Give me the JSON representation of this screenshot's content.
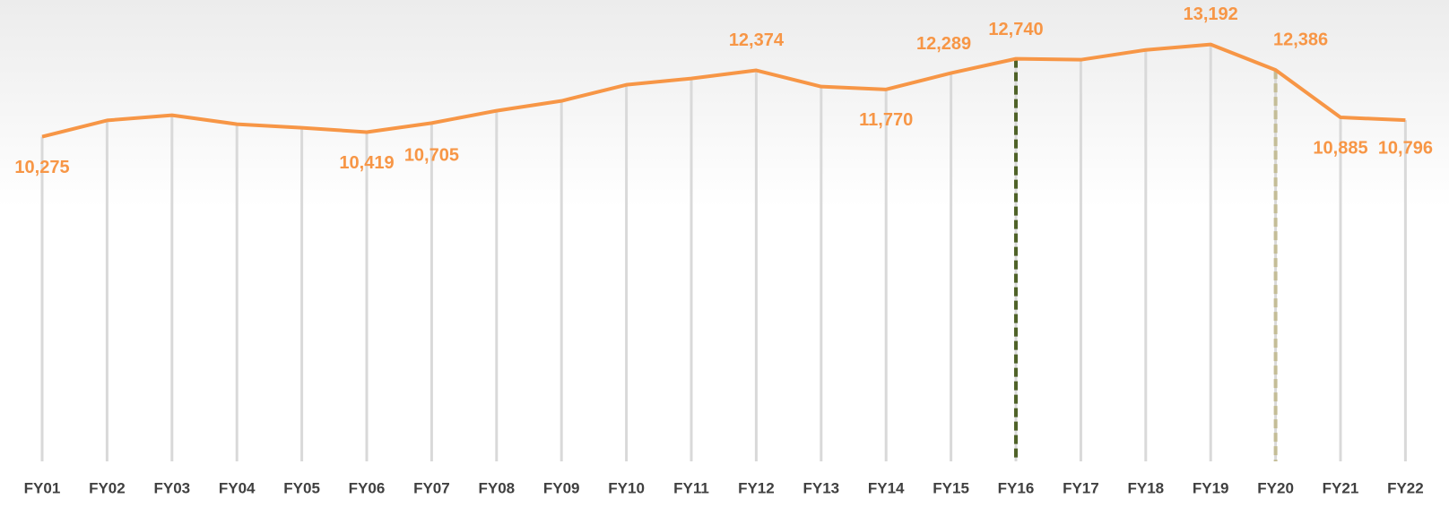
{
  "chart_data": {
    "type": "line",
    "categories": [
      "FY01",
      "FY02",
      "FY03",
      "FY04",
      "FY05",
      "FY06",
      "FY07",
      "FY08",
      "FY09",
      "FY10",
      "FY11",
      "FY12",
      "FY13",
      "FY14",
      "FY15",
      "FY16",
      "FY17",
      "FY18",
      "FY19",
      "FY20",
      "FY21",
      "FY22"
    ],
    "series": [
      {
        "name": null,
        "color": "#f79646",
        "values": [
          10275,
          10790,
          10954,
          10671,
          10558,
          10419,
          10705,
          11096,
          11407,
          11917,
          12115,
          12374,
          11860,
          11770,
          12289,
          12740,
          12710,
          13020,
          13192,
          12386,
          10885,
          10796
        ],
        "value_labels": [
          "10,275",
          null,
          null,
          null,
          null,
          "10,419",
          "10,705",
          null,
          null,
          null,
          null,
          "12,374",
          null,
          "11,770",
          "12,289",
          "12,740",
          null,
          null,
          "13,192",
          "12,386",
          "10,885",
          "10,796"
        ]
      }
    ],
    "ylim": [
      0,
      14600
    ],
    "drop_lines": true,
    "drop_line_color": "#d9d9d9",
    "highlights": [
      {
        "category": 15,
        "color": "#4f6228"
      },
      {
        "category": 19,
        "color": "#c4bd97"
      }
    ]
  }
}
